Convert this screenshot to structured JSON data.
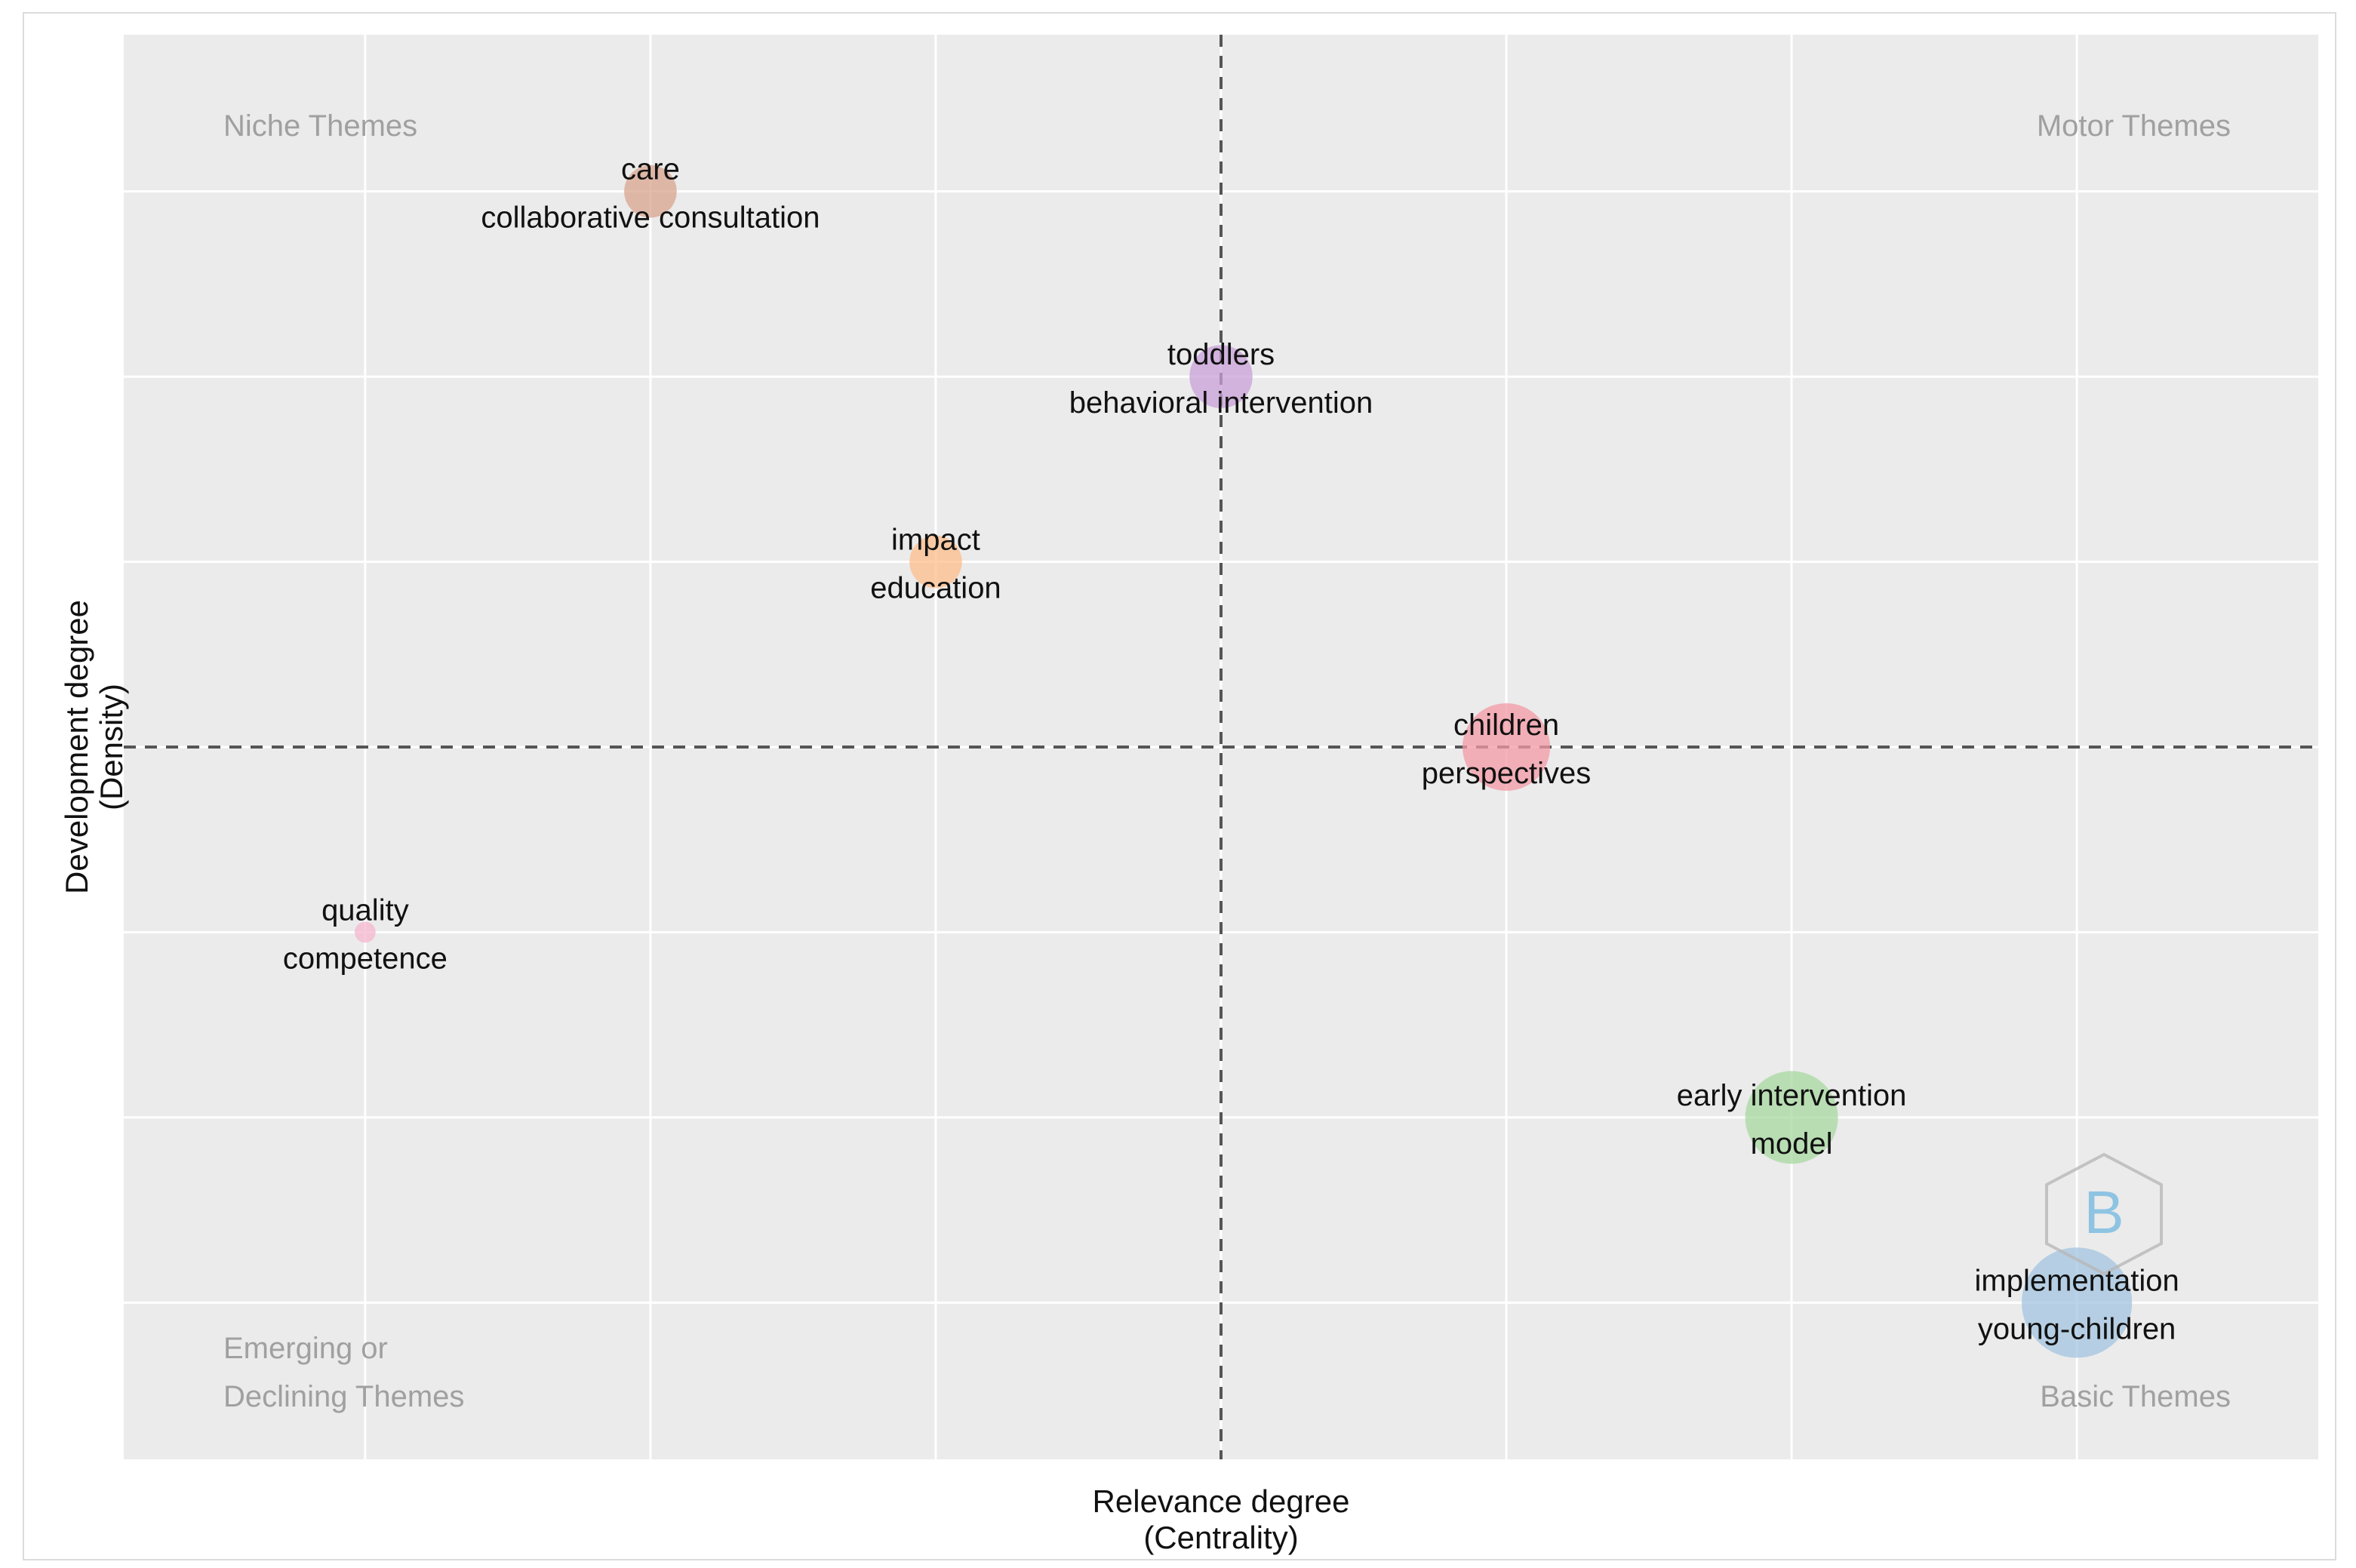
{
  "chart_data": {
    "type": "scatter",
    "title": "",
    "xlabel": [
      "Relevance degree",
      "(Centrality)"
    ],
    "ylabel": [
      "Development degree",
      "(Density)"
    ],
    "xlim": [
      0,
      1
    ],
    "ylim": [
      0,
      1
    ],
    "x_median": 0.5,
    "y_median": 0.5,
    "grid": true,
    "quadrants": {
      "top_left": "Niche Themes",
      "top_right": "Motor Themes",
      "bottom_left": [
        "Emerging or",
        "Declining Themes"
      ],
      "bottom_right": "Basic Themes"
    },
    "clusters": [
      {
        "labels": [
          "care",
          "collaborative consultation"
        ],
        "x": 0.24,
        "y": 0.89,
        "size": 0.3,
        "color": "#d8a48f"
      },
      {
        "labels": [
          "toddlers",
          "behavioral intervention"
        ],
        "x": 0.5,
        "y": 0.76,
        "size": 0.36,
        "color": "#c8a0d8"
      },
      {
        "labels": [
          "impact",
          "education"
        ],
        "x": 0.37,
        "y": 0.63,
        "size": 0.3,
        "color": "#fdbd8c"
      },
      {
        "labels": [
          "children",
          "perspectives"
        ],
        "x": 0.63,
        "y": 0.5,
        "size": 0.5,
        "color": "#f39aa6"
      },
      {
        "labels": [
          "quality",
          "competence"
        ],
        "x": 0.11,
        "y": 0.37,
        "size": 0.12,
        "color": "#f5b7cf"
      },
      {
        "labels": [
          "early intervention",
          "model"
        ],
        "x": 0.76,
        "y": 0.24,
        "size": 0.53,
        "color": "#a8d8a0"
      },
      {
        "labels": [
          "implementation",
          "young-children"
        ],
        "x": 0.89,
        "y": 0.11,
        "size": 0.63,
        "color": "#a3c4e0"
      }
    ]
  }
}
